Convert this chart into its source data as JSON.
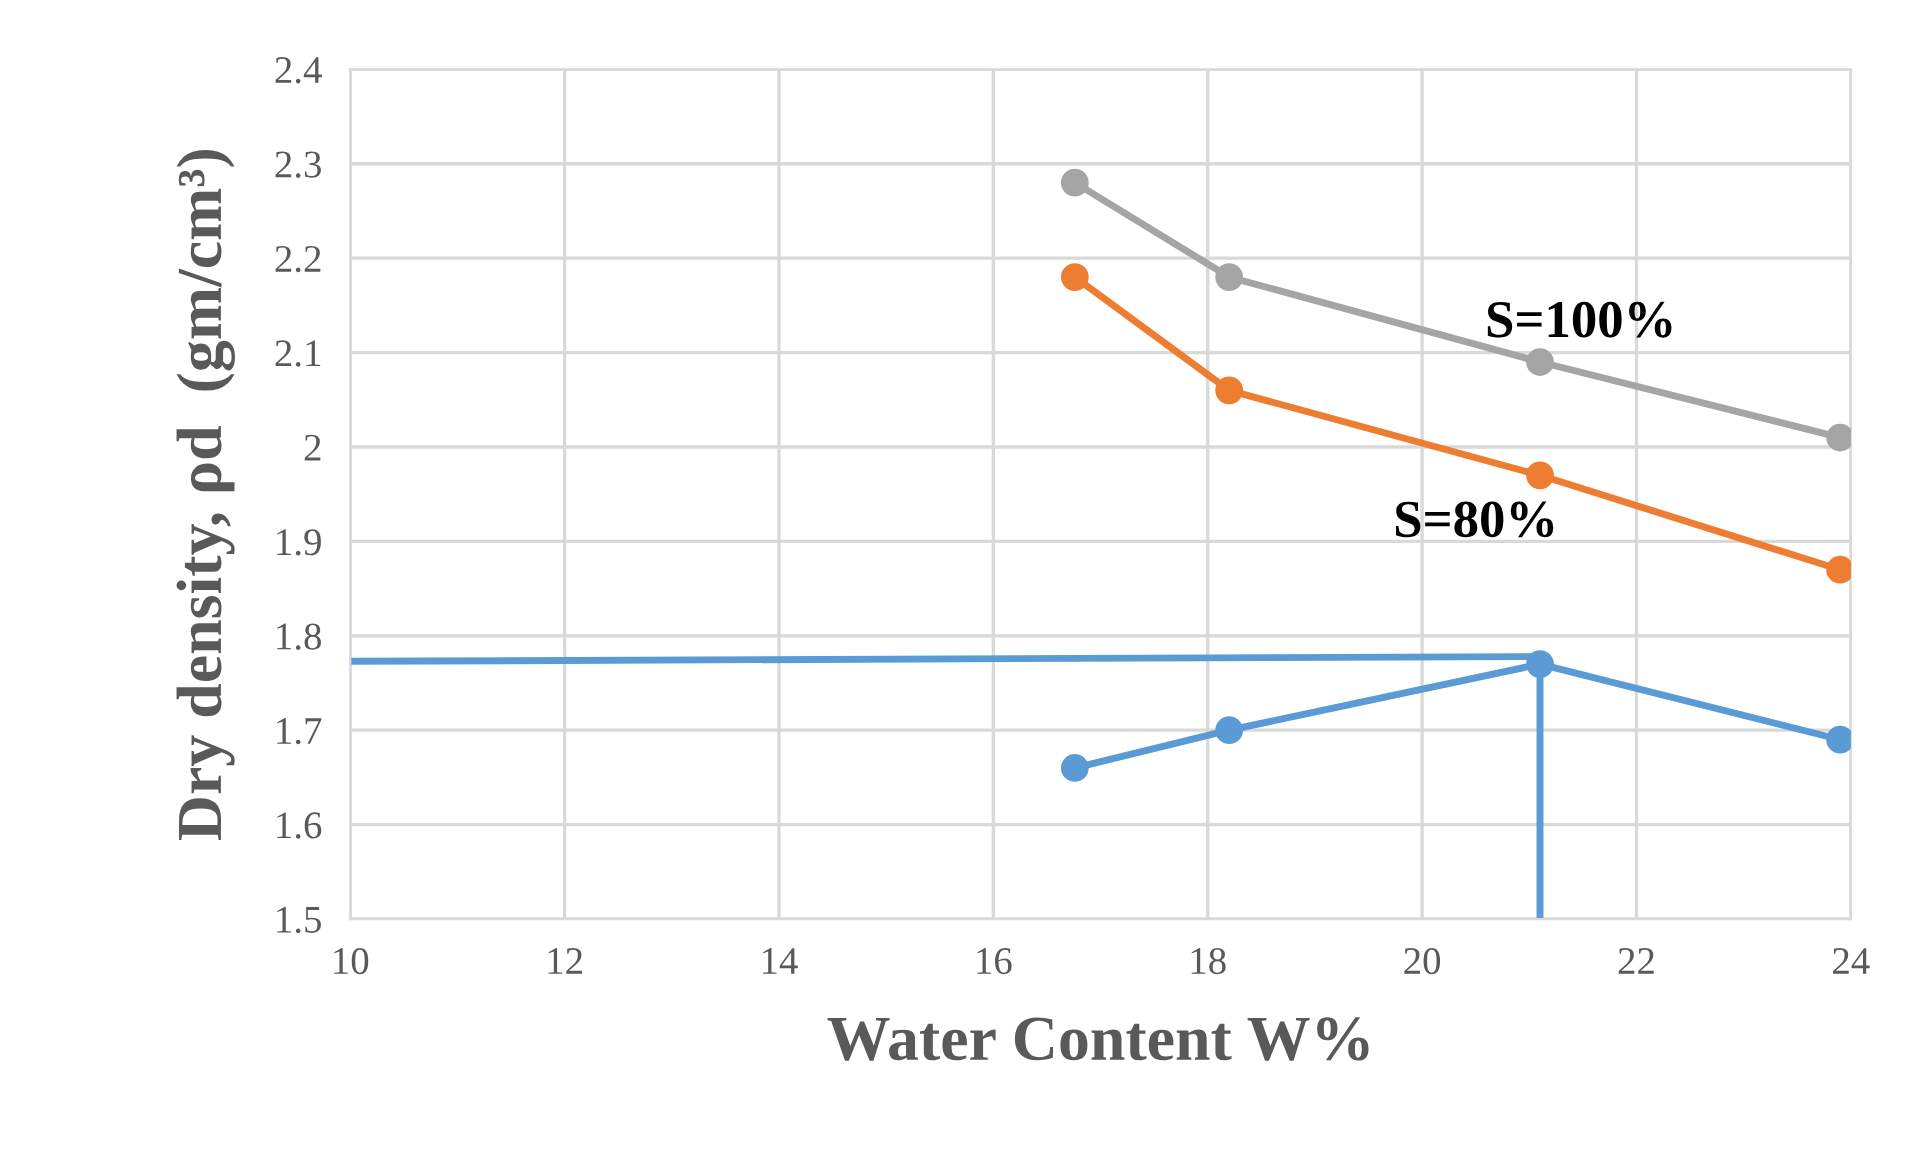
{
  "chart_data": {
    "type": "line",
    "xlabel": "Water Content W%",
    "ylabel": "Dry density, ρd  (gm/cm³)",
    "xlim": [
      10,
      24
    ],
    "xticks": [
      10,
      12,
      14,
      16,
      18,
      20,
      22,
      24
    ],
    "ylim": [
      1.5,
      2.4
    ],
    "yticks": [
      1.5,
      1.6,
      1.7,
      1.8,
      1.9,
      2,
      2.1,
      2.2,
      2.3,
      2.4
    ],
    "grid": true,
    "legend": false,
    "marker": "circle",
    "line_style": "solid",
    "series": [
      {
        "color": "#a5a5a5",
        "x": [
          16.76,
          18.2,
          21.1,
          23.9
        ],
        "values": [
          2.28,
          2.18,
          2.09,
          2.01
        ]
      },
      {
        "color": "#ed7d31",
        "x": [
          16.76,
          18.2,
          21.1,
          23.9
        ],
        "values": [
          2.18,
          2.06,
          1.97,
          1.87
        ]
      },
      {
        "color": "#5b9bd5",
        "x": [
          16.76,
          18.2,
          21.1,
          23.9
        ],
        "values": [
          1.66,
          1.7,
          1.77,
          1.69
        ]
      },
      {
        "color": "#5b9bd5",
        "marker": "none",
        "x": [
          10,
          21.1
        ],
        "values": [
          1.773,
          1.778
        ]
      },
      {
        "color": "#5b9bd5",
        "marker": "none",
        "x": [
          21.1,
          21.1
        ],
        "values": [
          1.5,
          1.77
        ]
      }
    ],
    "annotations": [
      "S=100%",
      "S=80%"
    ]
  }
}
